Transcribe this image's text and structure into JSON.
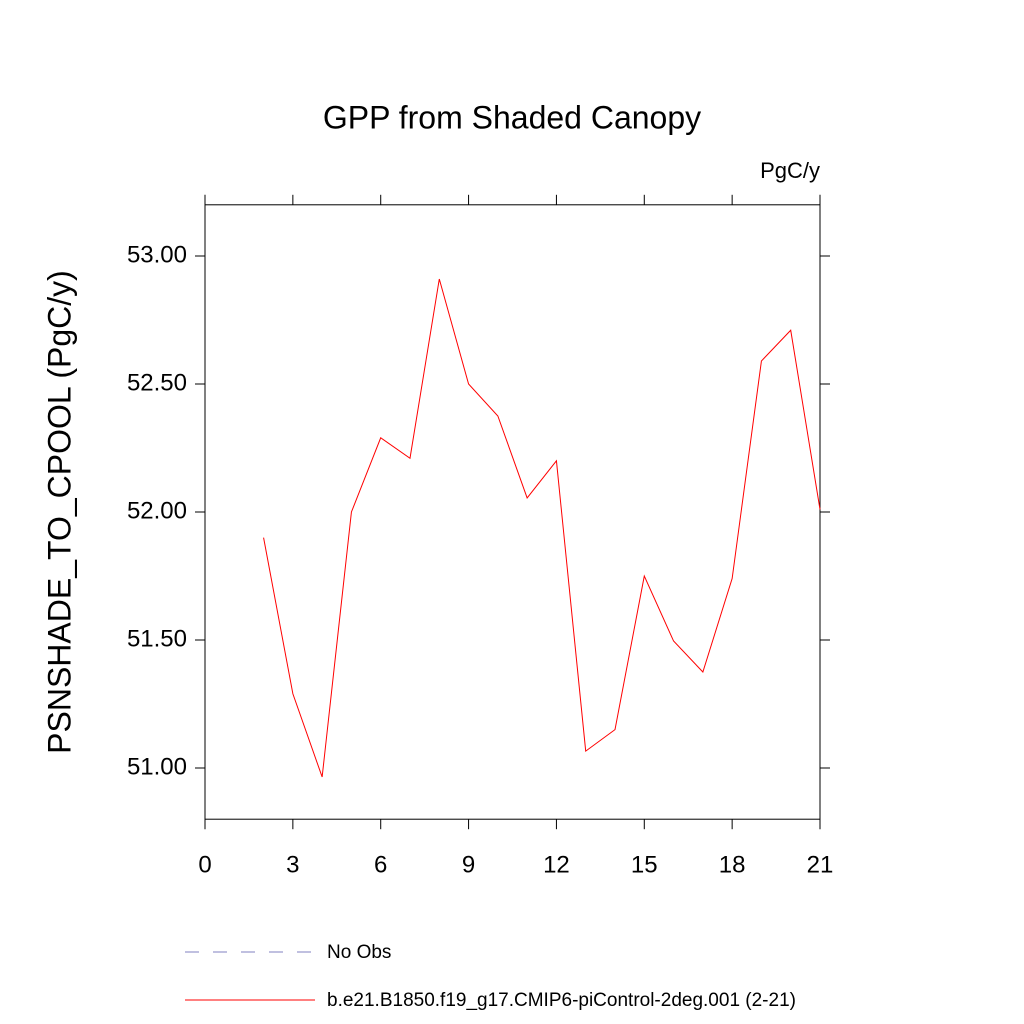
{
  "chart_data": {
    "type": "line",
    "title": "GPP from Shaded Canopy",
    "units_label": "PgC/y",
    "ylabel": "PSNSHADE_TO_CPOOL  (PgC/y)",
    "x": [
      2,
      3,
      4,
      5,
      6,
      7,
      8,
      9,
      10,
      11,
      12,
      13,
      14,
      15,
      16,
      17,
      18,
      19,
      20,
      21
    ],
    "series": [
      {
        "name": "No Obs",
        "color": "#8080c0",
        "dashed": true,
        "values": [
          null,
          null,
          null,
          null,
          null,
          null,
          null,
          null,
          null,
          null,
          null,
          null,
          null,
          null,
          null,
          null,
          null,
          null,
          null,
          null
        ]
      },
      {
        "name": "b.e21.B1850.f19_g17.CMIP6-piControl-2deg.001 (2-21)",
        "color": "#ff0000",
        "dashed": false,
        "values": [
          51.9,
          51.29,
          50.965,
          52.0,
          52.29,
          52.21,
          52.91,
          52.5,
          52.375,
          52.055,
          52.2,
          51.066,
          51.15,
          51.75,
          51.496,
          51.375,
          51.74,
          52.59,
          52.71,
          52.01
        ]
      }
    ],
    "xlim": [
      0,
      21
    ],
    "xticks": [
      0,
      3,
      6,
      9,
      12,
      15,
      18,
      21
    ],
    "ylim": [
      50.8,
      53.2
    ],
    "yticks": [
      {
        "value": 51,
        "label": "51.00"
      },
      {
        "value": 51.5,
        "label": "51.50"
      },
      {
        "value": 52,
        "label": "52.00"
      },
      {
        "value": 52.5,
        "label": "52.50"
      },
      {
        "value": 53,
        "label": "53.00"
      }
    ]
  }
}
